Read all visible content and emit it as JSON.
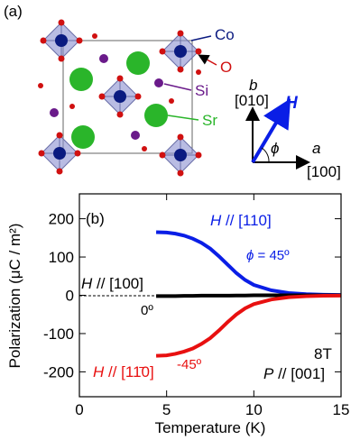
{
  "structure": {
    "label": "(a)",
    "atoms": [
      "Co",
      "O",
      "Si",
      "Sr"
    ],
    "axes": {
      "b": "b",
      "b_dir": "[010]",
      "H": "H",
      "phi": "ϕ",
      "a": "a",
      "a_dir": "[100]"
    }
  },
  "chart_data": {
    "type": "line",
    "panel_label": "(b)",
    "x_label": "Temperature (K)",
    "y_label": "Polarization (μC / m²)",
    "xlim": [
      0,
      15
    ],
    "ylim": [
      -265,
      265
    ],
    "xticks": [
      0,
      5,
      10,
      15
    ],
    "yticks": [
      -200,
      -100,
      0,
      100,
      200
    ],
    "x": [
      4.4,
      5,
      5.5,
      6,
      6.5,
      7,
      7.5,
      8,
      8.5,
      9,
      9.5,
      10,
      11,
      12,
      13,
      14,
      15
    ],
    "series": [
      {
        "color": "#0a1ee6",
        "values": [
          165,
          164,
          161,
          156,
          148,
          137,
          122,
          102,
          80,
          58,
          40,
          27,
          13,
          6,
          3,
          1.5,
          1
        ]
      },
      {
        "color": "#000000",
        "values": [
          -2,
          -2,
          -2,
          -1.5,
          -1.5,
          -1,
          -1,
          -1,
          -1,
          -0.5,
          -0.5,
          0,
          0,
          0,
          0,
          0,
          0
        ]
      },
      {
        "color": "#e81010",
        "values": [
          -158,
          -157,
          -153,
          -147,
          -139,
          -127,
          -112,
          -92,
          -70,
          -50,
          -34,
          -23,
          -11,
          -5,
          -2.5,
          -1.2,
          -0.8
        ]
      }
    ],
    "annotations": [
      {
        "italic": "H",
        "rest": " // [110]"
      },
      {
        "italic": "ϕ",
        "rest": " = 45º"
      },
      {
        "italic": "H",
        "rest": " // [100]"
      },
      {
        "rest": "0º"
      },
      {
        "italic": "H",
        "rest": " // [11̄0]"
      },
      {
        "rest": "-45º"
      },
      {
        "rest": "8T"
      },
      {
        "italic": "P",
        "rest": " // [001]"
      }
    ]
  }
}
